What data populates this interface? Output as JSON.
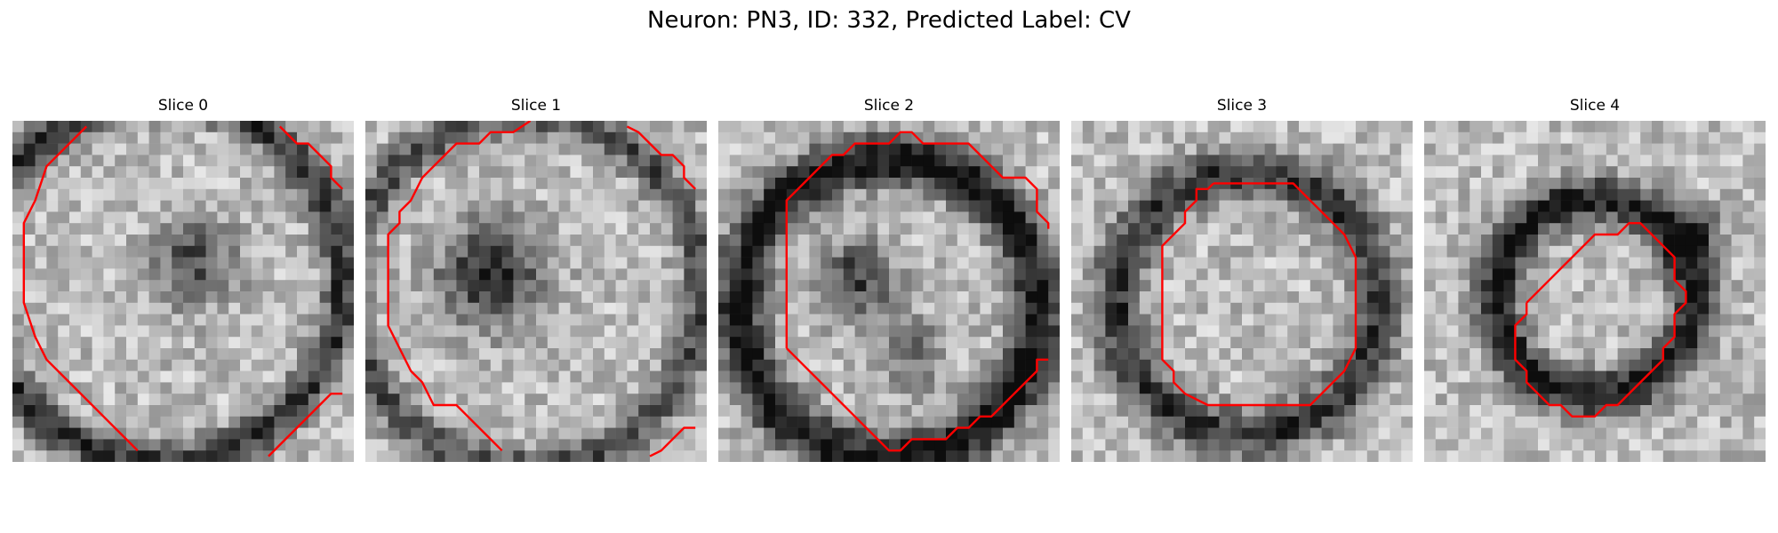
{
  "figure": {
    "title": "Neuron: PN3, ID: 332, Predicted Label: CV"
  },
  "colors": {
    "contour": "#ff0000",
    "background": "#ffffff",
    "colormap": "grayscale"
  },
  "slices": [
    {
      "title": "Slice 0"
    },
    {
      "title": "Slice 1"
    },
    {
      "title": "Slice 2"
    },
    {
      "title": "Slice 3"
    },
    {
      "title": "Slice 4"
    }
  ]
}
